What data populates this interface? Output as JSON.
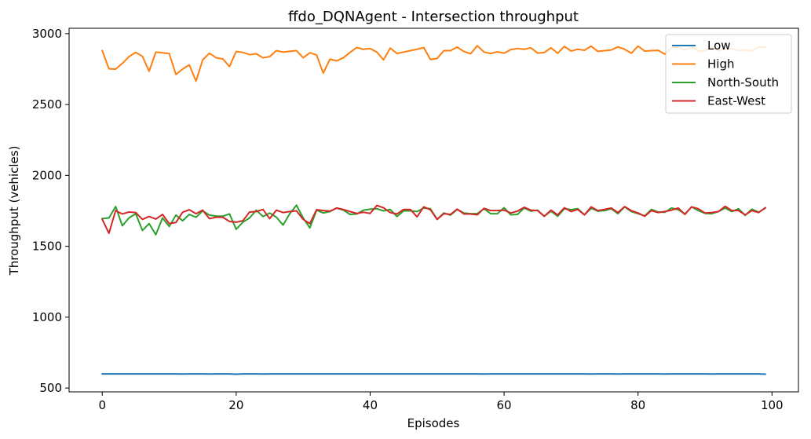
{
  "chart_data": {
    "type": "line",
    "title": "ffdo_DQNAgent - Intersection throughput",
    "xlabel": "Episodes",
    "ylabel": "Throughput (vehicles)",
    "xlim": [
      -4.95,
      103.95
    ],
    "ylim": [
      473,
      3038
    ],
    "xticks": [
      0,
      20,
      40,
      60,
      80,
      100
    ],
    "yticks": [
      500,
      1000,
      1500,
      2000,
      2500,
      3000
    ],
    "grid": false,
    "legend_position": "upper-right",
    "series": [
      {
        "name": "Low",
        "color": "#1f77b4",
        "values": [
          600,
          600,
          600,
          600,
          600,
          600,
          600,
          600,
          600,
          600,
          600,
          600,
          599,
          600,
          600,
          600,
          599,
          600,
          600,
          600,
          598,
          600,
          600,
          600,
          599,
          600,
          600,
          600,
          600,
          600,
          600,
          600,
          600,
          600,
          600,
          600,
          600,
          600,
          600,
          600,
          600,
          600,
          600,
          600,
          600,
          600,
          600,
          600,
          600,
          600,
          600,
          600,
          600,
          600,
          600,
          600,
          600,
          599,
          600,
          600,
          600,
          600,
          600,
          600,
          600,
          600,
          600,
          600,
          600,
          600,
          600,
          600,
          600,
          599,
          600,
          600,
          600,
          599,
          600,
          600,
          600,
          600,
          600,
          600,
          599,
          600,
          600,
          600,
          600,
          600,
          600,
          599,
          600,
          600,
          600,
          600,
          600,
          600,
          600,
          598
        ]
      },
      {
        "name": "High",
        "color": "#ff7f0e",
        "values": [
          2880,
          2752,
          2750,
          2790,
          2838,
          2868,
          2840,
          2735,
          2870,
          2865,
          2860,
          2712,
          2750,
          2780,
          2665,
          2815,
          2862,
          2830,
          2822,
          2768,
          2874,
          2868,
          2852,
          2858,
          2830,
          2838,
          2880,
          2870,
          2875,
          2880,
          2830,
          2865,
          2850,
          2722,
          2820,
          2808,
          2830,
          2868,
          2902,
          2890,
          2895,
          2870,
          2815,
          2898,
          2860,
          2870,
          2880,
          2890,
          2902,
          2818,
          2825,
          2880,
          2880,
          2905,
          2874,
          2858,
          2915,
          2870,
          2860,
          2872,
          2862,
          2888,
          2895,
          2890,
          2900,
          2863,
          2867,
          2900,
          2862,
          2910,
          2877,
          2890,
          2883,
          2912,
          2875,
          2880,
          2885,
          2907,
          2890,
          2862,
          2912,
          2877,
          2880,
          2882,
          2855,
          2900,
          2905,
          2885,
          2905,
          2877,
          2880,
          2910,
          2880,
          2890,
          2895,
          2880,
          2885,
          2878,
          2905,
          2905
        ]
      },
      {
        "name": "North-South",
        "color": "#2ca02c",
        "values": [
          1695,
          1700,
          1780,
          1645,
          1700,
          1730,
          1612,
          1660,
          1582,
          1700,
          1640,
          1720,
          1680,
          1725,
          1705,
          1750,
          1720,
          1713,
          1712,
          1728,
          1620,
          1670,
          1700,
          1755,
          1710,
          1735,
          1705,
          1650,
          1730,
          1790,
          1700,
          1630,
          1755,
          1735,
          1745,
          1770,
          1755,
          1725,
          1728,
          1755,
          1762,
          1765,
          1750,
          1760,
          1710,
          1750,
          1750,
          1745,
          1770,
          1765,
          1690,
          1735,
          1720,
          1760,
          1735,
          1730,
          1730,
          1765,
          1730,
          1730,
          1772,
          1722,
          1725,
          1770,
          1748,
          1755,
          1712,
          1748,
          1712,
          1765,
          1758,
          1765,
          1722,
          1768,
          1748,
          1752,
          1765,
          1730,
          1778,
          1745,
          1730,
          1715,
          1760,
          1742,
          1740,
          1770,
          1758,
          1728,
          1778,
          1752,
          1732,
          1730,
          1745,
          1770,
          1745,
          1765,
          1718,
          1762,
          1740,
          1770
        ]
      },
      {
        "name": "East-West",
        "color": "#d62728",
        "values": [
          1690,
          1592,
          1752,
          1728,
          1742,
          1738,
          1690,
          1710,
          1692,
          1725,
          1660,
          1668,
          1740,
          1758,
          1730,
          1755,
          1695,
          1705,
          1705,
          1675,
          1670,
          1680,
          1742,
          1745,
          1760,
          1695,
          1755,
          1738,
          1745,
          1750,
          1690,
          1660,
          1758,
          1752,
          1748,
          1770,
          1760,
          1745,
          1732,
          1740,
          1732,
          1788,
          1772,
          1738,
          1728,
          1760,
          1760,
          1708,
          1778,
          1758,
          1690,
          1730,
          1725,
          1762,
          1728,
          1728,
          1722,
          1768,
          1752,
          1752,
          1755,
          1735,
          1748,
          1775,
          1755,
          1752,
          1712,
          1755,
          1722,
          1772,
          1745,
          1760,
          1722,
          1778,
          1752,
          1760,
          1770,
          1738,
          1780,
          1752,
          1735,
          1712,
          1752,
          1738,
          1745,
          1755,
          1770,
          1725,
          1778,
          1765,
          1735,
          1738,
          1745,
          1782,
          1752,
          1752,
          1722,
          1752,
          1738,
          1772
        ]
      }
    ]
  }
}
